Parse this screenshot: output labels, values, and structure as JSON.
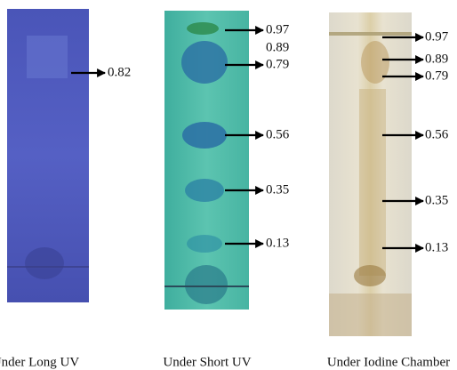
{
  "panels": [
    {
      "caption": "Under Long UV",
      "labels": [
        "0.82"
      ]
    },
    {
      "caption": "Under Short UV",
      "labels": [
        "0.97",
        "0.89",
        "0.79",
        "0.56",
        "0.35",
        "0.13"
      ]
    },
    {
      "caption": "Under Iodine Chamber",
      "labels": [
        "0.97",
        "0.89",
        "0.79",
        "0.56",
        "0.35",
        "0.13"
      ]
    }
  ]
}
